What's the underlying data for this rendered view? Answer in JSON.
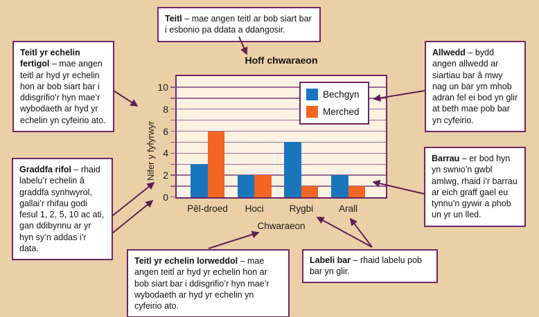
{
  "diagram": {
    "annotations": {
      "teitl": {
        "lead": "Teitl",
        "text": "– mae angen teitl ar bob siart bar i esbonio pa ddata a ddangosir."
      },
      "echelin_fertigol": {
        "lead": "Teitl yr echelin fertigol",
        "text": "– mae angen teitl ar hyd yr echelin hon ar bob siart bar i ddisgrifio’r hyn mae’r wybodaeth ar hyd yr echelin yn cyfeirio ato."
      },
      "graddfa_rifol": {
        "lead": "Graddfa rifol",
        "text": "– rhaid labelu’r echelin â graddfa synhwyrol, gallai’r rhifau godi fesul 1, 2, 5, 10 ac ati, gan ddibynnu ar yr hyn sy’n addas i’r data."
      },
      "allwedd": {
        "lead": "Allwedd",
        "text": "– bydd angen allwedd ar siartiau bar â mwy nag un bar ym mhob adran fel ei bod yn glir at beth mae pob bar yn cyfeirio."
      },
      "barrau": {
        "lead": "Barrau",
        "text": "– er bod hyn yn swnio’n gwbl amlwg, rhaid i’r barrau ar eich graff gael eu tynnu’n gywir a phob un yr un lled."
      },
      "echelin_lorweddol": {
        "lead": "Teitl yr echelin lorweddol",
        "text": "– mae angen teitl ar hyd yr echelin hon ar bob siart bar i ddisgrifio’r hyn mae’r wybodaeth ar hyd yr echelin yn cyfeirio ato."
      },
      "labeli_bar": {
        "lead": "Labeli bar",
        "text": "– rhaid labelu pob bar yn glir."
      }
    }
  },
  "chart_data": {
    "type": "bar",
    "title": "Hoff chwaraeon",
    "xlabel": "Chwaraeon",
    "ylabel": "Nifer y fyfyrwyr",
    "categories": [
      "Pêl-droed",
      "Hoci",
      "Rygbi",
      "Arall"
    ],
    "series": [
      {
        "name": "Bechgyn",
        "color": "#1b75bc",
        "values": [
          3,
          2,
          5,
          2
        ]
      },
      {
        "name": "Merched",
        "color": "#f26522",
        "values": [
          6,
          2,
          1,
          1
        ]
      }
    ],
    "ylim": [
      0,
      11
    ],
    "yticks": [
      0,
      2,
      4,
      6,
      8,
      10
    ],
    "gridlines": "horizontal every 1 unit",
    "legend_position": "top-right inside plot"
  },
  "colors": {
    "page_background": "#ebd0a7",
    "plot_background": "#fbf2e4",
    "box_border": "#6e2663",
    "gridline": "#9a6b94",
    "arrow": "#5e1f54",
    "bar_blue": "#1b75bc",
    "bar_orange": "#f26522"
  }
}
